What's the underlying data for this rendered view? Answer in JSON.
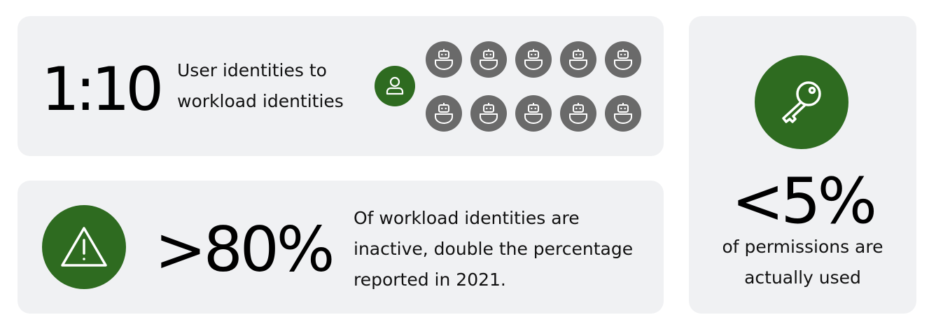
{
  "ratio_card": {
    "value": "1:10",
    "description_lines": [
      "User identities to",
      "workload identities"
    ],
    "user_icon": "user-icon",
    "robot_icon": "robot-icon",
    "robot_count": 10
  },
  "inactive_card": {
    "value": ">80%",
    "description_lines": [
      "Of workload identities are",
      "inactive, double the percentage",
      "reported in 2021."
    ],
    "icon": "warning-icon"
  },
  "permissions_card": {
    "value": "<5%",
    "description_lines": [
      "of permissions are",
      "actually used"
    ],
    "icon": "key-icon"
  },
  "colors": {
    "accent_green": "#2e6b20",
    "robot_gray": "#6a6a6a",
    "card_bg": "#f0f1f3"
  }
}
